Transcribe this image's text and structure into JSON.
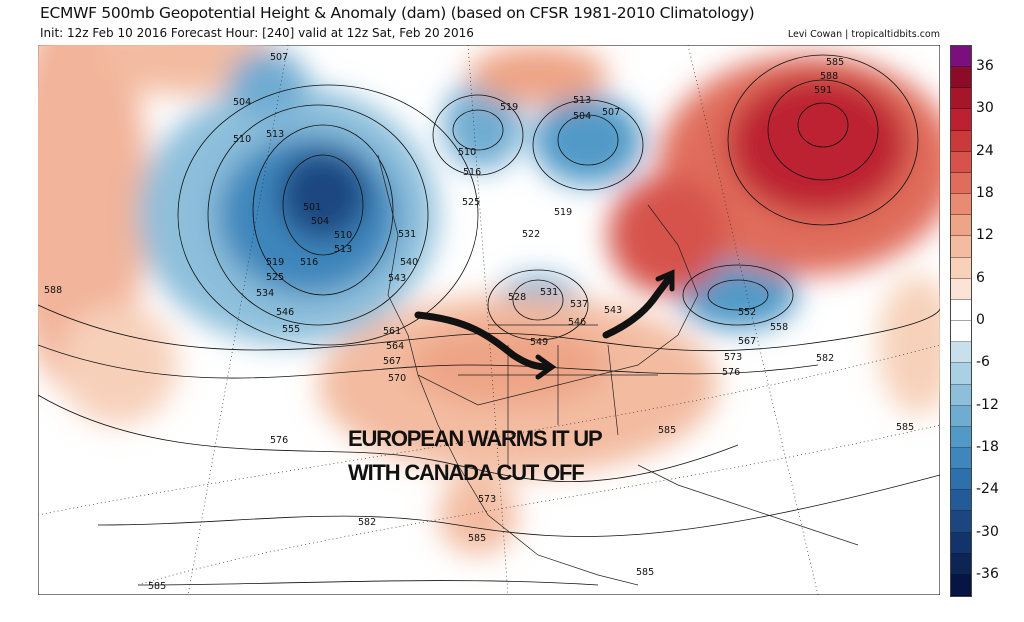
{
  "header": {
    "title": "ECMWF 500mb Geopotential Height & Anomaly (dam) (based on CFSR 1981-2010 Climatology)",
    "subtitle": "Init: 12z Feb 10 2016   Forecast Hour: [240]   valid at 12z Sat, Feb 20 2016",
    "credit": "Levi Cowan | tropicaltidbits.com"
  },
  "annotation": {
    "line1": "EUROPEAN WARMS IT UP",
    "line2": "WITH CANADA CUT OFF"
  },
  "colorbar": {
    "ticks": [
      "36",
      "30",
      "24",
      "18",
      "12",
      "6",
      "0",
      "-6",
      "-12",
      "-18",
      "-24",
      "-30",
      "-36"
    ],
    "colors": [
      "#7b0f7d",
      "#8c0b27",
      "#a6152a",
      "#bd2131",
      "#cb3a3a",
      "#d6524b",
      "#e06d5c",
      "#e88b72",
      "#eea486",
      "#f3bca1",
      "#f7d1ba",
      "#fbe4d6",
      "#ffffff",
      "#ffffff",
      "#c7e0eb",
      "#aad0e3",
      "#8dbfdb",
      "#6facd2",
      "#519ac7",
      "#3e86bc",
      "#2d70ac",
      "#235a98",
      "#1b4681",
      "#13346a",
      "#0d2555",
      "#071545"
    ]
  },
  "contour_labels": [
    "507",
    "504",
    "510",
    "513",
    "501",
    "504",
    "510",
    "513",
    "516",
    "519",
    "525",
    "534",
    "546",
    "555",
    "588",
    "540",
    "543",
    "531",
    "525",
    "522",
    "519",
    "516",
    "510",
    "513",
    "504",
    "507",
    "519",
    "528",
    "531",
    "537",
    "543",
    "546",
    "549",
    "561",
    "564",
    "567",
    "570",
    "573",
    "576",
    "552",
    "558",
    "567",
    "582",
    "585",
    "585",
    "576",
    "582",
    "585",
    "585",
    "585",
    "573",
    "591",
    "588",
    "585"
  ]
}
